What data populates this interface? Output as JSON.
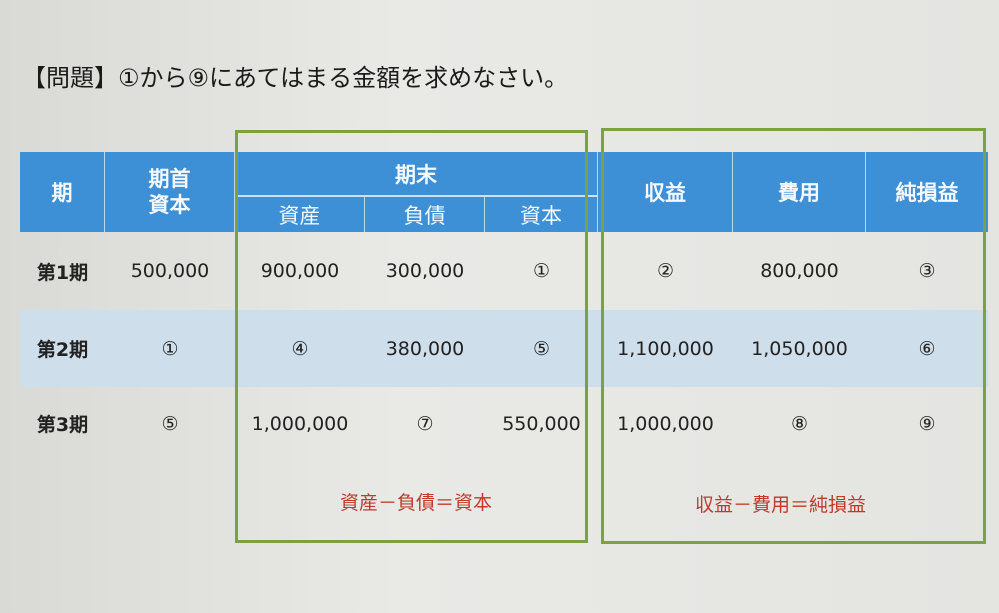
{
  "title": "【問題】①から⑨にあてはまる金額を求めなさい。",
  "header": {
    "period": "期",
    "opening_capital": "期首資本",
    "end": "期末",
    "assets": "資産",
    "liabilities": "負債",
    "capital": "資本",
    "revenue": "収益",
    "expenses": "費用",
    "net_income": "純損益"
  },
  "rows": [
    {
      "period": "第1期",
      "opening_capital": "500,000",
      "assets": "900,000",
      "liabilities": "300,000",
      "capital": "①",
      "revenue": "②",
      "expenses": "800,000",
      "net_income": "③"
    },
    {
      "period": "第2期",
      "opening_capital": "①",
      "assets": "④",
      "liabilities": "380,000",
      "capital": "⑤",
      "revenue": "1,100,000",
      "expenses": "1,050,000",
      "net_income": "⑥"
    },
    {
      "period": "第3期",
      "opening_capital": "⑤",
      "assets": "1,000,000",
      "liabilities": "⑦",
      "capital": "550,000",
      "revenue": "1,000,000",
      "expenses": "⑧",
      "net_income": "⑨"
    }
  ],
  "formulas": {
    "balance": "資産－負債＝資本",
    "income": "収益－費用＝純損益"
  },
  "colors": {
    "header": "#3d8fd6",
    "alt_row": "#cfdeeb",
    "box": "#7ba23f",
    "formula": "#c0392b"
  }
}
